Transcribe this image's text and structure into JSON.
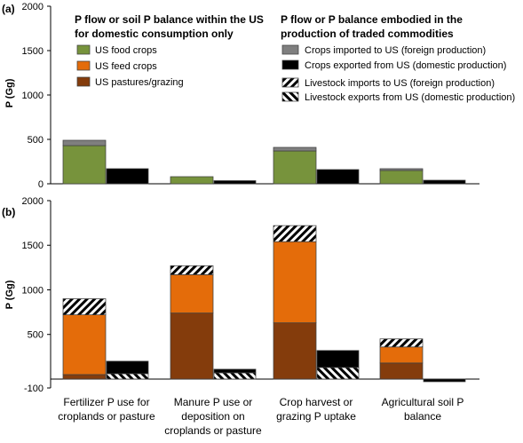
{
  "panels": [
    {
      "label": "(a)",
      "ylabel": "P (Gg)"
    },
    {
      "label": "(b)",
      "ylabel": "P (Gg)"
    }
  ],
  "legend": {
    "left_title": [
      "P flow or soil P balance within the US",
      "for domestic consumption only"
    ],
    "right_title": [
      "P flow or P balance embodied in the",
      "production of traded commodities"
    ],
    "left_items": [
      {
        "label": "US food crops",
        "color": "#77933c"
      },
      {
        "label": "US feed crops",
        "color": "#e46c0a"
      },
      {
        "label": "US pastures/grazing",
        "color": "#843c0c"
      }
    ],
    "right_items": [
      {
        "label": "Crops imported to US (foreign production)",
        "color": "#7f7f7f",
        "pattern": "solid"
      },
      {
        "label": "Crops exported from US (domestic production)",
        "color": "#000000",
        "pattern": "solid"
      },
      {
        "label": "Livestock imports to US (foreign production)",
        "color": "#ffffff",
        "pattern": "hatch-up"
      },
      {
        "label": "Livestock exports from US (domestic production)",
        "color": "#ffffff",
        "pattern": "hatch-down"
      }
    ]
  },
  "categories": [
    [
      "Fertilizer P use for",
      "croplands or pasture"
    ],
    [
      "Manure P use or",
      "deposition on",
      "croplands or pasture"
    ],
    [
      "Crop harvest or",
      "grazing P uptake"
    ],
    [
      "Agricultural soil P",
      "balance"
    ]
  ],
  "chart_data": [
    {
      "type": "bar",
      "stacked": true,
      "panel": "(a)",
      "ylabel": "P (Gg)",
      "ylim": [
        0,
        2000
      ],
      "yticks": [
        0,
        500,
        1000,
        1500,
        2000
      ],
      "categories": [
        "Fertilizer P use for croplands or pasture",
        "Manure P use or deposition on croplands or pasture",
        "Crop harvest or grazing P uptake",
        "Agricultural soil P balance"
      ],
      "domestic_series": [
        {
          "name": "US food crops",
          "color": "#77933c",
          "values": [
            430,
            80,
            370,
            150
          ]
        },
        {
          "name": "Crops imported to US (foreign production)",
          "color": "#7f7f7f",
          "values": [
            60,
            0,
            40,
            20
          ]
        }
      ],
      "traded_series": [
        {
          "name": "Crops exported from US (domestic production)",
          "color": "#000000",
          "values": [
            170,
            35,
            160,
            40
          ]
        }
      ]
    },
    {
      "type": "bar",
      "stacked": true,
      "panel": "(b)",
      "ylabel": "P (Gg)",
      "ylim": [
        -100,
        2000
      ],
      "yticks": [
        -100,
        500,
        1000,
        1500,
        2000
      ],
      "categories": [
        "Fertilizer P use for croplands or pasture",
        "Manure P use or deposition on croplands or pasture",
        "Crop harvest or grazing P uptake",
        "Agricultural soil P balance"
      ],
      "domestic_series": [
        {
          "name": "US pastures/grazing",
          "color": "#843c0c",
          "values": [
            50,
            740,
            630,
            180
          ]
        },
        {
          "name": "US feed crops",
          "color": "#e46c0a",
          "values": [
            670,
            430,
            910,
            180
          ]
        },
        {
          "name": "Livestock imports to US (foreign production)",
          "color": "#ffffff",
          "pattern": "hatch-up",
          "values": [
            180,
            100,
            180,
            90
          ]
        }
      ],
      "traded_series": [
        {
          "name": "Livestock exports from US (domestic production)",
          "color": "#ffffff",
          "pattern": "hatch-down",
          "values": [
            60,
            70,
            130,
            0
          ]
        },
        {
          "name": "Crops exported from US (domestic production)",
          "color": "#000000",
          "values": [
            140,
            40,
            190,
            -30
          ]
        }
      ]
    }
  ]
}
